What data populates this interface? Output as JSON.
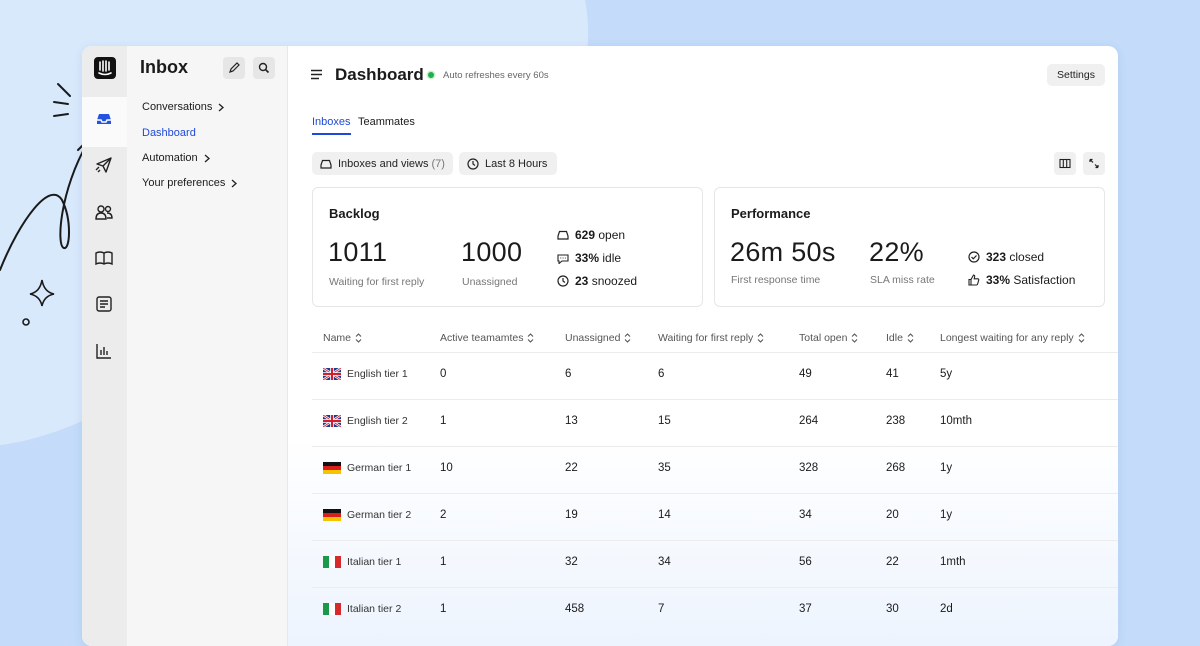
{
  "sidebar": {
    "title": "Inbox",
    "items": [
      "Conversations",
      "Dashboard",
      "Automation",
      "Your preferences"
    ]
  },
  "header": {
    "title": "Dashboard",
    "status": "Auto refreshes every 60s",
    "settings": "Settings"
  },
  "tabs": [
    "Inboxes",
    "Teammates"
  ],
  "filters": [
    {
      "label": "Inboxes and views",
      "count": "(7)"
    },
    {
      "label": "Last 8 Hours"
    }
  ],
  "backlog": {
    "title": "Backlog",
    "metrics": [
      {
        "value": 1011,
        "label": "Waiting for first reply"
      },
      {
        "value": 1000,
        "label": "Unassigned"
      }
    ],
    "details": [
      {
        "value": 629,
        "label": "open"
      },
      {
        "value": "33%",
        "label": "idle"
      },
      {
        "value": 23,
        "label": "snoozed"
      }
    ]
  },
  "performance": {
    "title": "Performance",
    "metrics": [
      {
        "value": "26m 50s",
        "label": "First response time"
      },
      {
        "value": "22%",
        "label": "SLA miss rate"
      }
    ],
    "details": [
      {
        "value": 323,
        "label": "closed"
      },
      {
        "value": "33%",
        "label": "Satisfaction"
      }
    ]
  },
  "table": {
    "columns": [
      "Name",
      "Active teamamtes",
      "Unassigned",
      "Waiting for first reply",
      "Total open",
      "Idle",
      "Longest waiting for any reply"
    ],
    "rows": [
      [
        "English tier 1",
        0,
        6,
        6,
        49,
        41,
        "5y"
      ],
      [
        "English tier 2",
        1,
        13,
        15,
        264,
        238,
        "10mth"
      ],
      [
        "German tier 1",
        10,
        22,
        35,
        328,
        268,
        "1y"
      ],
      [
        "German tier 2",
        2,
        19,
        14,
        34,
        20,
        "1y"
      ],
      [
        "Italian tier 1",
        1,
        32,
        34,
        56,
        22,
        "1mth"
      ],
      [
        "Italian tier 2",
        1,
        458,
        7,
        37,
        30,
        "2d"
      ]
    ]
  }
}
